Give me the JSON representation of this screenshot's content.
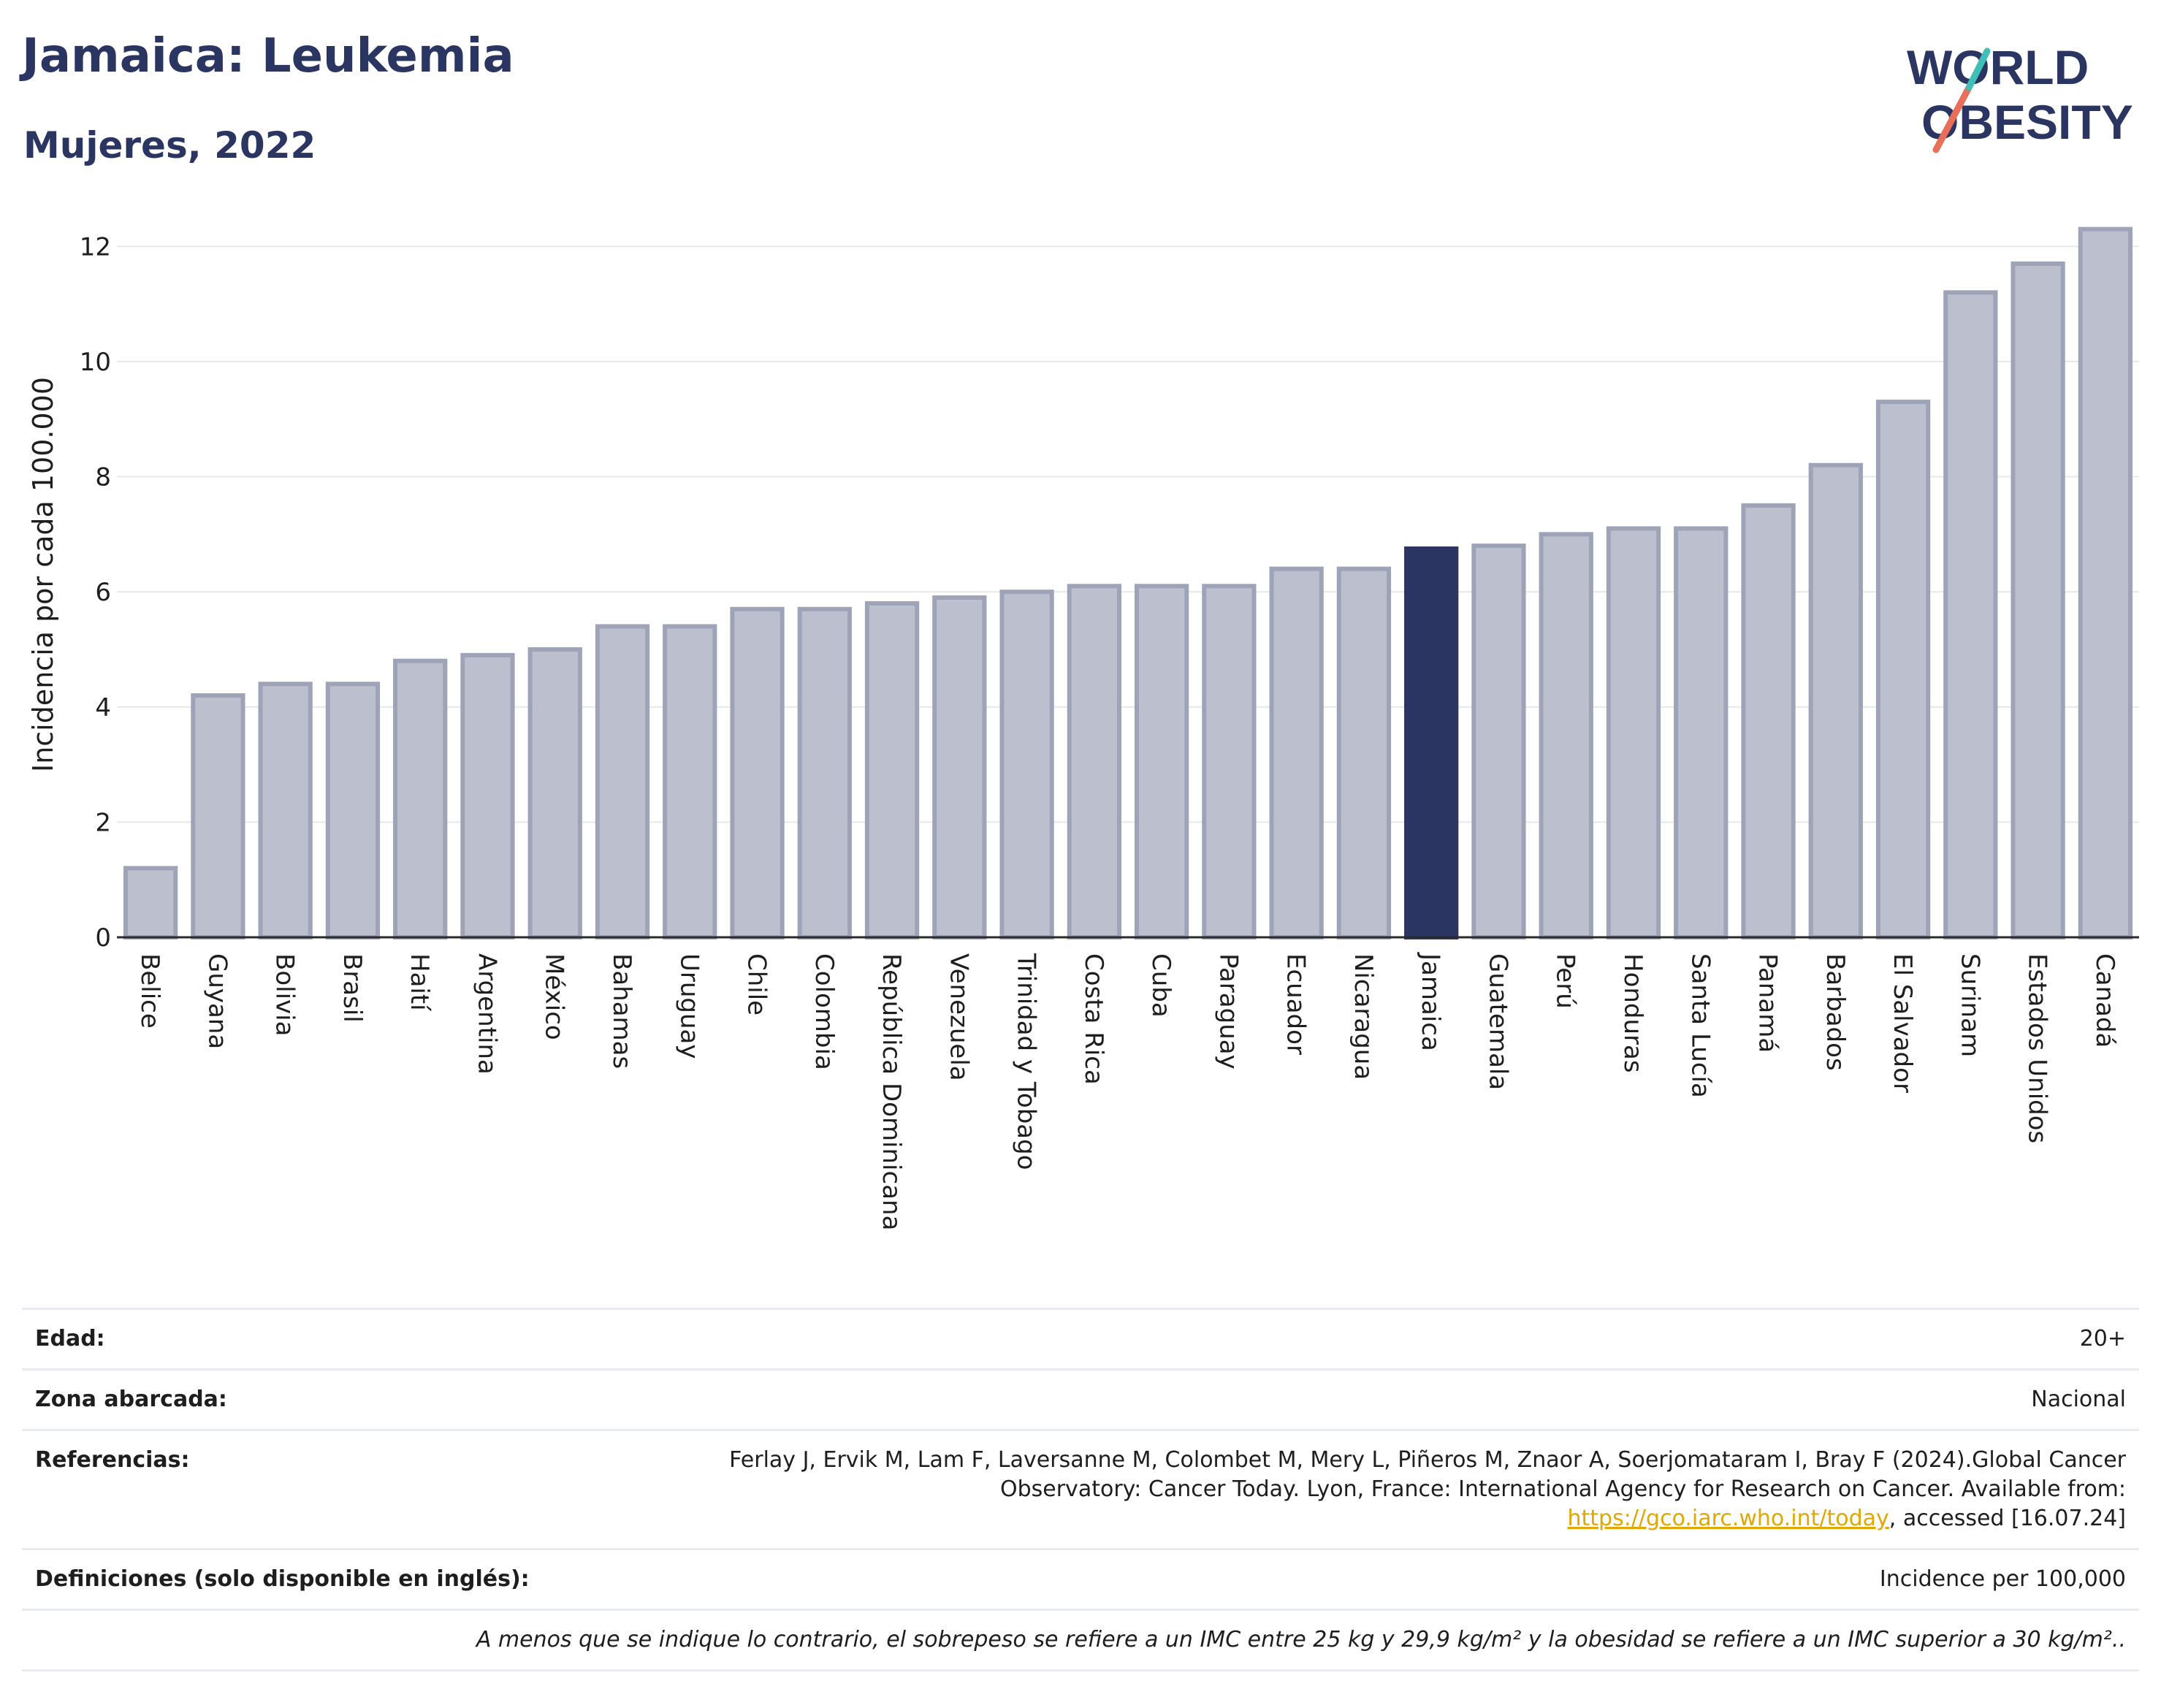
{
  "header": {
    "title": "Jamaica: Leukemia",
    "subtitle": "Mujeres, 2022"
  },
  "logo": {
    "line1": "WORLD",
    "line2": "OBESITY"
  },
  "chart_data": {
    "type": "bar",
    "ylabel": "Incidencia por cada 100.000",
    "ylim": [
      0,
      12.6
    ],
    "yticks": [
      0,
      2,
      4,
      6,
      8,
      10,
      12
    ],
    "grid": true,
    "highlight": "Jamaica",
    "categories": [
      "Belice",
      "Guyana",
      "Bolivia",
      "Brasil",
      "Haití",
      "Argentina",
      "México",
      "Bahamas",
      "Uruguay",
      "Chile",
      "Colombia",
      "República Dominicana",
      "Venezuela",
      "Trinidad y Tobago",
      "Costa Rica",
      "Cuba",
      "Paraguay",
      "Ecuador",
      "Nicaragua",
      "Jamaica",
      "Guatemala",
      "Perú",
      "Honduras",
      "Santa Lucía",
      "Panamá",
      "Barbados",
      "El Salvador",
      "Surinam",
      "Estados Unidos",
      "Canadá"
    ],
    "values": [
      1.2,
      4.2,
      4.4,
      4.4,
      4.8,
      4.9,
      5.0,
      5.4,
      5.4,
      5.7,
      5.7,
      5.8,
      5.9,
      6.0,
      6.1,
      6.1,
      6.1,
      6.4,
      6.4,
      6.75,
      6.8,
      7.0,
      7.1,
      7.1,
      7.5,
      8.2,
      9.3,
      11.2,
      11.7,
      12.3
    ],
    "colors": {
      "bar": "#bcc0ce",
      "bar_border": "#9ea3b8",
      "highlight": "#2b3561"
    }
  },
  "info": {
    "rows": [
      {
        "label": "Edad:",
        "value": "20+"
      },
      {
        "label": "Zona abarcada:",
        "value": "Nacional"
      },
      {
        "label": "Referencias:",
        "value_pre": "Ferlay J, Ervik M, Lam F, Laversanne M, Colombet M, Mery L, Piñeros M, Znaor A, Soerjomataram I, Bray F (2024).Global Cancer Observatory: Cancer Today. Lyon, France: International Agency for Research on Cancer. Available from: ",
        "link": "https://gco.iarc.who.int/today",
        "value_post": ", accessed [16.07.24]"
      },
      {
        "label": "Definiciones (solo disponible en inglés):",
        "value": "Incidence per 100,000"
      }
    ],
    "note": "A menos que se indique lo contrario, el sobrepeso se refiere a un IMC entre 25 kg y 29,9 kg/m² y la obesidad se refiere a un IMC superior a 30 kg/m².."
  }
}
